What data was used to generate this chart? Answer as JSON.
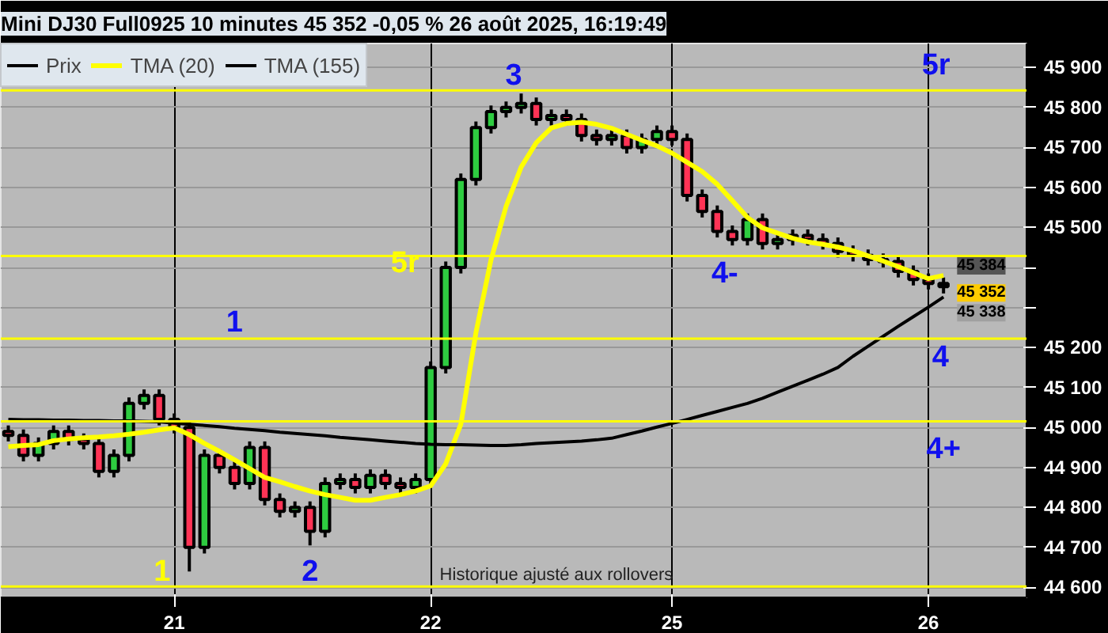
{
  "chart_data": {
    "type": "candlestick",
    "title": "Mini DJ30 Full0925 10 minutes 45 352 -0,05 % 26 août 2025, 16:19:49",
    "categories": [
      null,
      null,
      null,
      null,
      null,
      null,
      null,
      null,
      null,
      null,
      null,
      "21",
      null,
      null,
      null,
      null,
      null,
      null,
      null,
      null,
      null,
      null,
      null,
      null,
      null,
      null,
      null,
      null,
      "22",
      null,
      null,
      null,
      null,
      null,
      null,
      null,
      null,
      null,
      null,
      null,
      null,
      null,
      null,
      null,
      "25",
      null,
      null,
      null,
      null,
      null,
      null,
      null,
      null,
      null,
      null,
      null,
      null,
      null,
      null,
      null,
      null,
      "26",
      null
    ],
    "ylim": [
      44575,
      45960
    ],
    "yticks": [
      {
        "value": 44600,
        "label": "44 600"
      },
      {
        "value": 44700,
        "label": "44 700"
      },
      {
        "value": 44800,
        "label": "44 800"
      },
      {
        "value": 44900,
        "label": "44 900"
      },
      {
        "value": 45000,
        "label": "45 000"
      },
      {
        "value": 45100,
        "label": "45 100"
      },
      {
        "value": 45200,
        "label": "45 200"
      },
      {
        "value": 45300,
        "label": null
      },
      {
        "value": 45400,
        "label": null
      },
      {
        "value": 45500,
        "label": "45 500"
      },
      {
        "value": 45600,
        "label": "45 600"
      },
      {
        "value": 45700,
        "label": "45 700"
      },
      {
        "value": 45800,
        "label": "45 800"
      },
      {
        "value": 45900,
        "label": "45 900"
      }
    ],
    "grid": true,
    "legend": "top left",
    "series": [
      {
        "name": "Prix",
        "color": "#000000",
        "ohlc": [
          [
            44990,
            45005,
            44965,
            44980
          ],
          [
            44980,
            44995,
            44915,
            44930
          ],
          [
            44930,
            44975,
            44915,
            44960
          ],
          [
            44960,
            45005,
            44945,
            44990
          ],
          [
            44990,
            45005,
            44955,
            44970
          ],
          [
            44970,
            44985,
            44945,
            44960
          ],
          [
            44960,
            44975,
            44875,
            44890
          ],
          [
            44890,
            44945,
            44875,
            44930
          ],
          [
            44930,
            45075,
            44915,
            45060
          ],
          [
            45060,
            45095,
            45045,
            45080
          ],
          [
            45080,
            45095,
            45005,
            45020
          ],
          [
            45020,
            45035,
            44985,
            45000
          ],
          [
            45000,
            45015,
            44640,
            44700
          ],
          [
            44700,
            44945,
            44685,
            44930
          ],
          [
            44930,
            44945,
            44885,
            44900
          ],
          [
            44900,
            44915,
            44845,
            44860
          ],
          [
            44860,
            44965,
            44845,
            44950
          ],
          [
            44950,
            44965,
            44805,
            44820
          ],
          [
            44820,
            44835,
            44775,
            44790
          ],
          [
            44790,
            44815,
            44775,
            44800
          ],
          [
            44800,
            44815,
            44705,
            44740
          ],
          [
            44740,
            44875,
            44725,
            44860
          ],
          [
            44860,
            44885,
            44845,
            44870
          ],
          [
            44870,
            44885,
            44835,
            44850
          ],
          [
            44850,
            44895,
            44835,
            44880
          ],
          [
            44880,
            44895,
            44845,
            44860
          ],
          [
            44860,
            44875,
            44835,
            44850
          ],
          [
            44850,
            44885,
            44835,
            44870
          ],
          [
            44870,
            45165,
            44855,
            45150
          ],
          [
            45150,
            45415,
            45135,
            45400
          ],
          [
            45400,
            45635,
            45385,
            45620
          ],
          [
            45620,
            45765,
            45605,
            45750
          ],
          [
            45750,
            45805,
            45735,
            45790
          ],
          [
            45790,
            45815,
            45775,
            45800
          ],
          [
            45800,
            45835,
            45785,
            45810
          ],
          [
            45810,
            45825,
            45755,
            45770
          ],
          [
            45770,
            45795,
            45755,
            45780
          ],
          [
            45780,
            45795,
            45755,
            45770
          ],
          [
            45770,
            45785,
            45715,
            45730
          ],
          [
            45730,
            45745,
            45705,
            45720
          ],
          [
            45720,
            45745,
            45705,
            45730
          ],
          [
            45730,
            45745,
            45685,
            45700
          ],
          [
            45700,
            45735,
            45685,
            45720
          ],
          [
            45720,
            45755,
            45705,
            45740
          ],
          [
            45740,
            45755,
            45705,
            45720
          ],
          [
            45720,
            45735,
            45565,
            45580
          ],
          [
            45580,
            45595,
            45525,
            45540
          ],
          [
            45540,
            45555,
            45475,
            45490
          ],
          [
            45490,
            45505,
            45455,
            45470
          ],
          [
            45470,
            45535,
            45455,
            45520
          ],
          [
            45520,
            45535,
            45445,
            45460
          ],
          [
            45460,
            45485,
            45445,
            45470
          ],
          [
            45470,
            45495,
            45455,
            45480
          ],
          [
            45480,
            45495,
            45455,
            45470
          ],
          [
            45470,
            45485,
            45445,
            45460
          ],
          [
            45460,
            45475,
            45425,
            45440
          ],
          [
            45440,
            45455,
            45415,
            45430
          ],
          [
            45430,
            45445,
            45405,
            45420
          ],
          [
            45420,
            45435,
            45400,
            45415
          ],
          [
            45415,
            45430,
            45375,
            45390
          ],
          [
            45390,
            45405,
            45355,
            45370
          ],
          [
            45370,
            45385,
            45345,
            45360
          ],
          [
            45360,
            45375,
            45335,
            45352
          ]
        ]
      },
      {
        "name": "TMA (20)",
        "type": "line",
        "color": "#ffff00",
        "values": [
          44952,
          44955,
          44957,
          44967,
          44971,
          44974,
          44976,
          44979,
          44983,
          44988,
          44994,
          44999,
          44982,
          44960,
          44940,
          44919,
          44897,
          44875,
          44864,
          44852,
          44841,
          44832,
          44825,
          44818,
          44818,
          44825,
          44832,
          44841,
          44854,
          44909,
          45008,
          45237,
          45419,
          45553,
          45651,
          45712,
          45749,
          45760,
          45763,
          45758,
          45748,
          45733,
          45718,
          45704,
          45686,
          45663,
          45640,
          45608,
          45567,
          45525,
          45499,
          45486,
          45473,
          45464,
          45458,
          45451,
          45442,
          45429,
          45416,
          45402,
          45387,
          45372,
          45380
        ]
      },
      {
        "name": "TMA (155)",
        "type": "line",
        "color": "#000000",
        "values": [
          45020,
          45019,
          45019,
          45018,
          45018,
          45017,
          45017,
          45016,
          45016,
          45015,
          45014,
          45011,
          45008,
          45005,
          45002,
          44998,
          44995,
          44992,
          44988,
          44985,
          44982,
          44979,
          44975,
          44972,
          44969,
          44966,
          44963,
          44960,
          44958,
          44957,
          44957,
          44956,
          44955,
          44955,
          44957,
          44960,
          44962,
          44964,
          44966,
          44969,
          44973,
          44982,
          44991,
          45001,
          45010,
          45020,
          45030,
          45040,
          45050,
          45060,
          45073,
          45088,
          45103,
          45118,
          45133,
          45150,
          45178,
          45203,
          45228,
          45253,
          45277,
          45301,
          45326
        ]
      }
    ],
    "ref_lines": [
      {
        "axis": "y",
        "value": 45843,
        "color": "#ffff00"
      },
      {
        "axis": "y",
        "value": 45429,
        "color": "#ffff00"
      },
      {
        "axis": "y",
        "value": 45222,
        "color": "#ffff00"
      },
      {
        "axis": "y",
        "value": 45015,
        "color": "#ffff00"
      },
      {
        "axis": "y",
        "value": 44602,
        "color": "#ffff00"
      }
    ],
    "annotations": [
      "3",
      "5r",
      "4-",
      "4",
      "4+",
      "1",
      "5r",
      "2",
      "1",
      "45 384",
      "45 352",
      "45 338",
      "Historique ajusté aux rollovers"
    ]
  }
}
